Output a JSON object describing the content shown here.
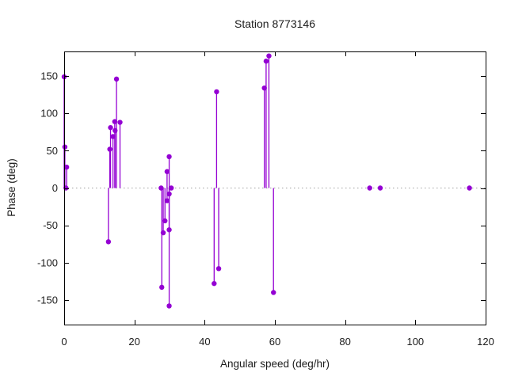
{
  "figure": {
    "kind": "gnuplot-style stem chart"
  },
  "chart_data": {
    "type": "scatter",
    "style": "impulses-with-points (stem plot)",
    "title": "Station 8773146",
    "xlabel": "Angular speed (deg/hr)",
    "ylabel": "Phase (deg)",
    "xlim": [
      0,
      120
    ],
    "ylim": [
      -183,
      183
    ],
    "xticks": [
      0,
      20,
      40,
      60,
      80,
      100,
      120
    ],
    "yticks": [
      -150,
      -100,
      -50,
      0,
      50,
      100,
      150
    ],
    "grid": false,
    "legend": "none",
    "zero_line": {
      "y": 0,
      "style": "dotted",
      "color": "#a0a0a0"
    },
    "series_color": "#9400d3",
    "border_color": "#000000",
    "points": [
      {
        "x": 0.0,
        "y": 149
      },
      {
        "x": 0.2,
        "y": 55
      },
      {
        "x": 0.5,
        "y": 0
      },
      {
        "x": 0.7,
        "y": 28
      },
      {
        "x": 12.6,
        "y": -72
      },
      {
        "x": 13.0,
        "y": 52
      },
      {
        "x": 13.2,
        "y": 81
      },
      {
        "x": 13.9,
        "y": 69
      },
      {
        "x": 14.4,
        "y": 89
      },
      {
        "x": 14.5,
        "y": 77
      },
      {
        "x": 14.9,
        "y": 146
      },
      {
        "x": 15.9,
        "y": 88
      },
      {
        "x": 27.6,
        "y": 0
      },
      {
        "x": 27.8,
        "y": -133
      },
      {
        "x": 28.2,
        "y": -60
      },
      {
        "x": 28.7,
        "y": -44
      },
      {
        "x": 29.3,
        "y": 22
      },
      {
        "x": 29.3,
        "y": -17
      },
      {
        "x": 29.9,
        "y": 42
      },
      {
        "x": 29.9,
        "y": -8
      },
      {
        "x": 29.9,
        "y": -56
      },
      {
        "x": 29.9,
        "y": -158
      },
      {
        "x": 30.5,
        "y": 0
      },
      {
        "x": 42.7,
        "y": -128
      },
      {
        "x": 43.4,
        "y": 129
      },
      {
        "x": 44.0,
        "y": -108
      },
      {
        "x": 57.0,
        "y": 134
      },
      {
        "x": 57.5,
        "y": 170
      },
      {
        "x": 58.3,
        "y": 177
      },
      {
        "x": 59.6,
        "y": -140
      },
      {
        "x": 87.0,
        "y": 0
      },
      {
        "x": 90.0,
        "y": 0
      },
      {
        "x": 115.4,
        "y": 0
      }
    ]
  }
}
